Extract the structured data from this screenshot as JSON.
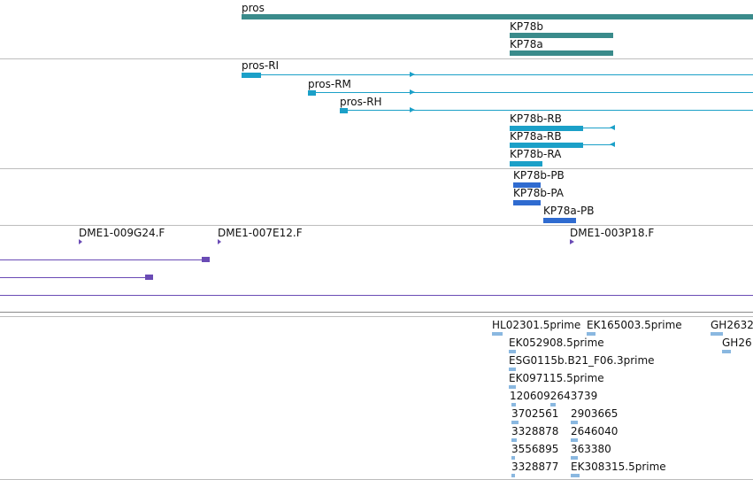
{
  "tracks": {
    "genes": {
      "pros": "pros",
      "kp78b": "KP78b",
      "kp78a": "KP78a"
    },
    "transcripts": {
      "pros_ri": "pros-RI",
      "pros_rm": "pros-RM",
      "pros_rh": "pros-RH",
      "kp78b_rb": "KP78b-RB",
      "kp78a_rb": "KP78a-RB",
      "kp78b_ra": "KP78b-RA"
    },
    "proteins": {
      "kp78b_pb": "KP78b-PB",
      "kp78b_pa": "KP78b-PA",
      "kp78a_pb": "KP78a-PB"
    },
    "clones": {
      "c1": "DME1-009G24.F",
      "c2": "DME1-007E12.F",
      "c3": "DME1-003P18.F"
    },
    "ests": {
      "e1": "HL02301.5prime",
      "e2": "EK165003.5prime",
      "e3": "GH2632",
      "e4": "EK052908.5prime",
      "e5": "GH26",
      "e6": "ESG0115b.B21_F06.3prime",
      "e7": "EK097115.5prime",
      "e8": "1206092643739",
      "e9": "3702561",
      "e10": "2903665",
      "e11": "3328878",
      "e12": "2646040",
      "e13": "3556895",
      "e14": "363380",
      "e15": "3328877",
      "e16": "EK308315.5prime"
    }
  },
  "colors": {
    "gene": "#3a8b8b",
    "transcript": "#1ba0c8",
    "protein": "#2f6bd0",
    "clone": "#6a4bb5",
    "est": "#8ab8e0",
    "separator": "#bdbdbd"
  }
}
